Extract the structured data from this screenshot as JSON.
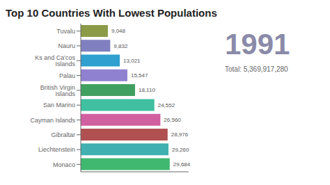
{
  "chart_data": {
    "type": "bar",
    "orientation": "horizontal",
    "title": "Top 10 Countries With Lowest Populations",
    "annotations": [
      "1991",
      "Total: 5,369,917,280"
    ],
    "categories": [
      "Monaco",
      "Liechtenstein",
      "Gibraltar",
      "Cayman Islands",
      "San Marino",
      "British Virgin Islands",
      "Palau",
      "Ks and Ca'cos Islands",
      "Nauru",
      "Tuvalu"
    ],
    "values": [
      29684,
      29260,
      28976,
      26560,
      24552,
      18110,
      15547,
      13021,
      9832,
      9048
    ],
    "value_labels": [
      "29,684",
      "29,260",
      "28,976",
      "26,560",
      "24,552",
      "18,110",
      "15,547",
      "13,021",
      "9,832",
      "9,048"
    ],
    "colors": [
      "#40b870",
      "#40b0b0",
      "#b05050",
      "#d060a0",
      "#40c0a0",
      "#40a060",
      "#9080d0",
      "#30a0d0",
      "#8080c0",
      "#8b9a46"
    ],
    "xlim": [
      0,
      36000
    ],
    "data_labels": true,
    "tick_labels": "y",
    "grid": false
  }
}
